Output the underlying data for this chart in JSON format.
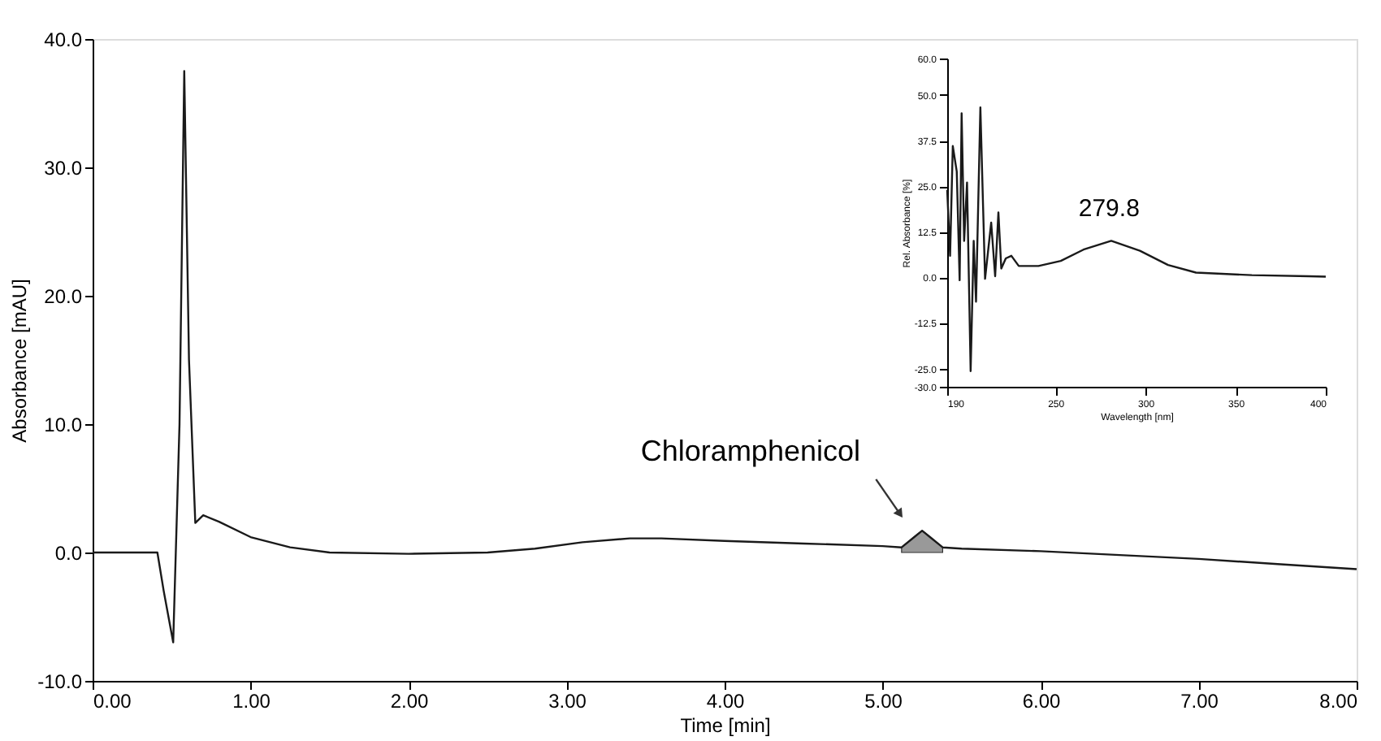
{
  "chart_data": [
    {
      "type": "line",
      "xlabel": "Time [min]",
      "ylabel": "Absorbance [mAU]",
      "xlim": [
        0,
        8
      ],
      "ylim": [
        -10,
        40
      ],
      "xticks": [
        {
          "value": 0,
          "label": "0.00"
        },
        {
          "value": 1,
          "label": "1.00"
        },
        {
          "value": 2,
          "label": "2.00"
        },
        {
          "value": 3,
          "label": "3.00"
        },
        {
          "value": 4,
          "label": "4.00"
        },
        {
          "value": 5,
          "label": "5.00"
        },
        {
          "value": 6,
          "label": "6.00"
        },
        {
          "value": 7,
          "label": "7.00"
        },
        {
          "value": 8,
          "label": "8.00"
        }
      ],
      "yticks": [
        {
          "value": -10,
          "label": "-10.0"
        },
        {
          "value": 0,
          "label": "0.0"
        },
        {
          "value": 10,
          "label": "10.0"
        },
        {
          "value": 20,
          "label": "20.0"
        },
        {
          "value": 30,
          "label": "30.0"
        },
        {
          "value": 40,
          "label": "40.0"
        }
      ],
      "grid": false,
      "marker": "none",
      "annotations": [
        {
          "text": "Chloramphenicol",
          "x": 5.11,
          "y": 3.0
        }
      ],
      "series": [
        {
          "color": "#1a1a1a",
          "x": [
            0,
            0.41,
            0.45,
            0.51,
            0.55,
            0.58,
            0.61,
            0.65,
            0.7,
            0.8,
            1.0,
            1.25,
            1.5,
            2.0,
            2.5,
            2.8,
            3.1,
            3.4,
            3.6,
            4.0,
            4.5,
            5.0,
            5.12,
            5.2,
            5.25,
            5.3,
            5.38,
            5.5,
            6.0,
            6.5,
            7.0,
            7.5,
            8.0
          ],
          "values": [
            0,
            0,
            -3,
            -7,
            10,
            37.5,
            15,
            2.3,
            2.9,
            2.4,
            1.2,
            0.4,
            0,
            -0.1,
            0,
            0.3,
            0.8,
            1.1,
            1.1,
            0.9,
            0.7,
            0.5,
            0.4,
            1.2,
            1.7,
            1.2,
            0.4,
            0.3,
            0.1,
            -0.2,
            -0.5,
            -0.9,
            -1.3
          ]
        },
        {
          "type": "area",
          "color": "#999999",
          "x": [
            5.12,
            5.2,
            5.25,
            5.3,
            5.38
          ],
          "values": [
            0.4,
            1.2,
            1.7,
            1.2,
            0.4
          ]
        }
      ]
    },
    {
      "type": "line",
      "xlabel": "Wavelength [nm]",
      "ylabel": "Rel. Absorbance [%]",
      "xlim": [
        190,
        400
      ],
      "ylim": [
        -30,
        60
      ],
      "xticks": [
        190,
        250,
        300,
        350,
        400
      ],
      "yticks": [
        {
          "value": -30,
          "label": "-30.0"
        },
        {
          "value": -25,
          "label": "-25.0"
        },
        {
          "value": -12.5,
          "label": "-12.5"
        },
        {
          "value": 0,
          "label": "0.0"
        },
        {
          "value": 12.5,
          "label": "12.5"
        },
        {
          "value": 25,
          "label": "25.0"
        },
        {
          "value": 37.5,
          "label": "37.5"
        },
        {
          "value": 50,
          "label": "50.0"
        },
        {
          "value": 60,
          "label": "60.0"
        }
      ],
      "grid": false,
      "marker": "none",
      "annotations": [
        {
          "text": "279.8",
          "x": 279.8,
          "y": 10
        }
      ],
      "series": [
        {
          "color": "#1a1a1a",
          "x": [
            190,
            191.6,
            193.1,
            195.3,
            196.9,
            198,
            199.4,
            201,
            203,
            204.7,
            206,
            208.4,
            211,
            214.4,
            216.6,
            218.4,
            220,
            222.5,
            225.6,
            229.7,
            240.6,
            253,
            265.6,
            281,
            296.9,
            312.5,
            328,
            359,
            390.6,
            400
          ],
          "values": [
            24,
            5.9,
            36,
            29,
            -0.8,
            45,
            10,
            26,
            -25.7,
            10,
            -6.7,
            46.6,
            -0.4,
            15,
            0.3,
            17.8,
            2.4,
            5.2,
            5.9,
            3.1,
            3.1,
            4.5,
            7.6,
            10,
            7.3,
            3.4,
            1.3,
            0.6,
            0.3,
            0.2
          ]
        }
      ]
    }
  ]
}
